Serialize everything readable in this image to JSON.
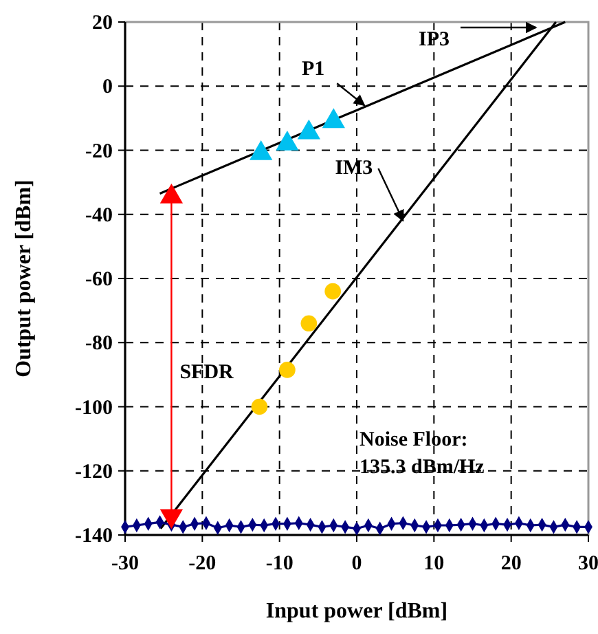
{
  "chart_data": {
    "type": "scatter",
    "xlabel": "Input power [dBm]",
    "ylabel": "Output power [dBm]",
    "xlim": [
      -30,
      30
    ],
    "xticks": [
      -30,
      -20,
      -10,
      0,
      10,
      20,
      30
    ],
    "ylim": [
      -140,
      20
    ],
    "yticks": [
      -140,
      -120,
      -100,
      -80,
      -60,
      -40,
      -20,
      0,
      20
    ],
    "grid": true,
    "legend": false,
    "series": [
      {
        "type": "line",
        "color": "#000000",
        "marker": "none",
        "x": [
          -25.5,
          27
        ],
        "values": [
          -33.5,
          20
        ]
      },
      {
        "type": "line",
        "color": "#000000",
        "marker": "none",
        "x": [
          -25.4,
          25.8
        ],
        "values": [
          -138,
          20
        ]
      },
      {
        "color": "#00c0f0",
        "marker": "triangle",
        "x": [
          -12.4,
          -9,
          -6.2,
          -3
        ],
        "values": [
          -21,
          -18,
          -14.5,
          -11
        ]
      },
      {
        "color": "#ffcc00",
        "marker": "circle",
        "x": [
          -12.6,
          -9,
          -6.2,
          -3.1
        ],
        "values": [
          -100,
          -88.5,
          -74,
          -64
        ]
      },
      {
        "type": "line",
        "color": "#000080",
        "marker": "diamond",
        "x": [
          -30,
          -28.5,
          -27,
          -25.5,
          -24,
          -22.5,
          -21,
          -19.5,
          -18,
          -16.5,
          -15,
          -13.5,
          -12,
          -10.5,
          -9,
          -7.5,
          -6,
          -4.5,
          -3,
          -1.5,
          0,
          1.5,
          3,
          4.5,
          6,
          7.5,
          9,
          10.5,
          12,
          13.5,
          15,
          16.5,
          18,
          19.5,
          21,
          22.5,
          24,
          25.5,
          27,
          28.5,
          30
        ],
        "values": [
          -137.5,
          -137,
          -136.5,
          -136,
          -136.8,
          -137.5,
          -136.5,
          -136.3,
          -137.8,
          -137,
          -137.5,
          -136.8,
          -137,
          -136.5,
          -136.5,
          -136.3,
          -136.8,
          -137.5,
          -137,
          -137.5,
          -138,
          -137,
          -138,
          -136.5,
          -136.3,
          -137,
          -137.5,
          -137,
          -137,
          -136.8,
          -136.5,
          -137,
          -136.5,
          -136.8,
          -136.3,
          -137,
          -136.8,
          -137.5,
          -136.8,
          -137.5,
          -137.5
        ]
      },
      {
        "type": "line",
        "color": "#ff0000",
        "marker": "triangle",
        "x": [
          -24,
          -24
        ],
        "values": [
          -34.5,
          -134
        ]
      }
    ],
    "annotations": [
      {
        "text": "P1",
        "x": 1,
        "y": -6
      },
      {
        "text": "IM3",
        "x": 6,
        "y": -42
      },
      "IP3",
      {
        "text": "SFDR",
        "x": -24,
        "y": -85
      },
      {
        "text": "Noise Floor:\n135.3 dBm/Hz",
        "x": 0,
        "y": -137
      }
    ]
  }
}
